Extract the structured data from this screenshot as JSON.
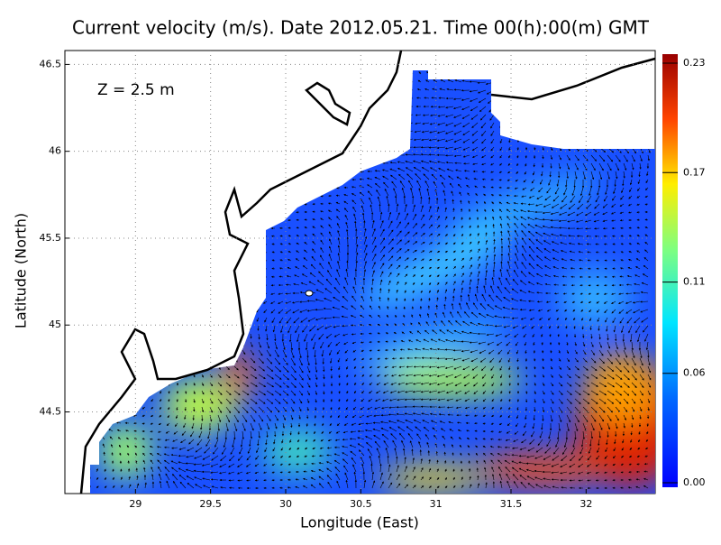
{
  "chart_data": {
    "type": "heatmap",
    "title": "Current velocity (m/s). Date 2012.05.21. Time 00(h):00(m) GMT",
    "annotation": "Z = 2.5 m",
    "xlabel": "Longitude (East)",
    "ylabel": "Latitude (North)",
    "xlim": [
      28.53,
      32.46
    ],
    "ylim": [
      44.03,
      46.58
    ],
    "xticks": [
      29,
      29.5,
      30,
      30.5,
      31,
      31.5,
      32
    ],
    "yticks": [
      44.5,
      45,
      45.5,
      46,
      46.5
    ],
    "grid": true,
    "colorbar": {
      "lim": [
        0,
        0.23
      ],
      "ticks": [
        {
          "value": 0,
          "label": "0.00"
        },
        {
          "value": 0.06,
          "label": "0.06"
        },
        {
          "value": 0.11,
          "label": "0.11"
        },
        {
          "value": 0.17,
          "label": "0.17"
        },
        {
          "value": 0.23,
          "label": "0.23"
        }
      ]
    }
  }
}
